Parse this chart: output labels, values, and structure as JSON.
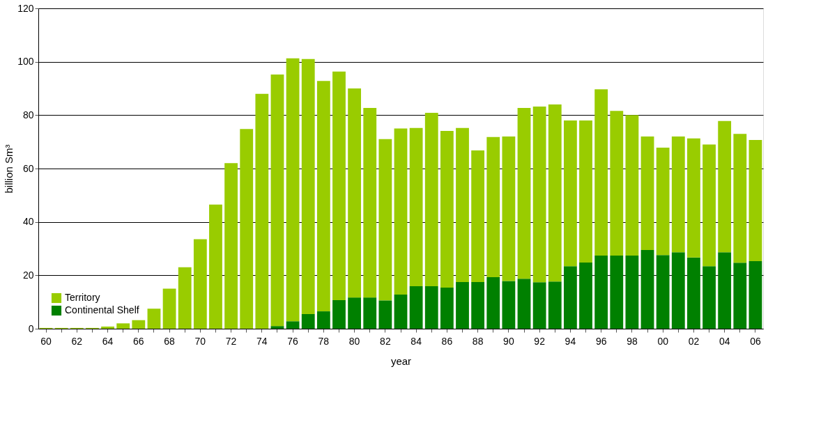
{
  "chart_data": {
    "type": "bar",
    "stacked": true,
    "xlabel": "year",
    "ylabel": "billion Sm³",
    "categories": [
      "60",
      null,
      "62",
      null,
      "64",
      null,
      "66",
      null,
      "68",
      null,
      "70",
      null,
      "72",
      null,
      "74",
      null,
      "76",
      null,
      "78",
      null,
      "80",
      null,
      "82",
      null,
      "84",
      null,
      "86",
      null,
      "88",
      null,
      "90",
      null,
      "92",
      null,
      "94",
      null,
      "96",
      null,
      "98",
      null,
      "00",
      null,
      "02",
      null,
      "04",
      null,
      "06"
    ],
    "series": [
      {
        "name": "Continental Shelf",
        "color": "#008000",
        "values": [
          0,
          0,
          0,
          0,
          0,
          0,
          0,
          0,
          0,
          0,
          0,
          0,
          0,
          0,
          0,
          1,
          2.8,
          5.5,
          6.5,
          10.7,
          11.7,
          11.7,
          10.6,
          12.8,
          15.9,
          15.9,
          15.4,
          17.5,
          17.5,
          19.3,
          17.9,
          18.7,
          17.4,
          17.7,
          23.4,
          24.8,
          27.4,
          27.4,
          27.4,
          29.5,
          27.6,
          28.6,
          26.7,
          23.4,
          28.6,
          24.7,
          25.3
        ]
      },
      {
        "name": "Territory",
        "color": "#99cc00",
        "values": [
          0.3,
          0.3,
          0.3,
          0.3,
          0.8,
          2,
          3.2,
          7.5,
          15,
          23,
          33.5,
          46.5,
          62,
          74.8,
          88,
          94.2,
          98.5,
          95.5,
          86.3,
          85.6,
          78.3,
          71,
          60.4,
          62.2,
          59.3,
          65,
          58.7,
          57.7,
          49.3,
          52.5,
          54.1,
          64,
          65.8,
          66.3,
          54.6,
          53.2,
          62.3,
          54.2,
          52.6,
          42.5,
          40.2,
          43.4,
          44.6,
          45.6,
          49.2,
          48.3,
          45.4
        ]
      }
    ],
    "ylim": [
      0,
      120
    ],
    "yticks": [
      0,
      20,
      40,
      60,
      80,
      100,
      120
    ],
    "grid": "y",
    "legend": "bottom left"
  }
}
